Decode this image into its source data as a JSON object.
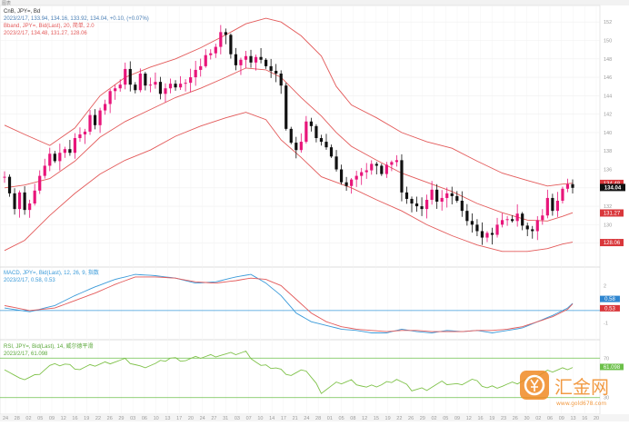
{
  "topbar": {
    "left_label": "图表",
    "right_label": ""
  },
  "main": {
    "symbol_line": "CnB, JPY=, Bd",
    "quote_line": "2023/2/17, 133.94, 134.16, 133.92, 134.04, +0.10, (+0.07%)",
    "bands_title": "Bband, JPY=, Bid(Last), 20, 简单, 2.0",
    "bands_values": "2023/2/17, 134.48, 131.27, 128.06",
    "price_tag_high": "134.48",
    "price_tag_last": "134.04",
    "price_tag_mid": "131.27",
    "price_tag_low": "128.06"
  },
  "macd": {
    "title": "MACD, JPY=, Bid(Last), 12, 26, 9, 指数",
    "values": "2023/2/17, 0.58, 0.53",
    "tag_macd": "0.58",
    "tag_signal": "0.53"
  },
  "rsi": {
    "title": "RSI, JPY=, Bid(Last), 14, 威尔德平滑",
    "values": "2023/2/17, 61.098",
    "tag": "61.098"
  },
  "watermark": {
    "brand": "汇金网",
    "url": "www.gold678.com"
  },
  "colors": {
    "up": "#e8157a",
    "down": "#111111",
    "band": "#e35a5a",
    "macd_line": "#3a9ad9",
    "signal_line": "#e35a5a",
    "rsi_line": "#7fc24a",
    "rsi_guide": "#6cc04a",
    "zero_line": "#3a9ad9",
    "watermark": "#f08a24"
  },
  "chart_data": [
    {
      "type": "candlestick",
      "title": "",
      "y_ticks": [
        128,
        130,
        132,
        134,
        136,
        138,
        140,
        142,
        144,
        146,
        148,
        150,
        152
      ],
      "ylim": [
        125.6,
        153.4
      ],
      "x_ticks": [
        "24",
        "28",
        "02",
        "05",
        "09",
        "12",
        "16",
        "19",
        "22",
        "26",
        "29",
        "03",
        "06",
        "10",
        "13",
        "17",
        "20",
        "24",
        "27",
        "31",
        "03",
        "07",
        "10",
        "14",
        "17",
        "21",
        "24",
        "28",
        "01",
        "05",
        "08",
        "12",
        "15",
        "19",
        "22",
        "26",
        "29",
        "02",
        "05",
        "09",
        "12",
        "16",
        "19",
        "23",
        "26",
        "30",
        "02",
        "06",
        "09",
        "13",
        "16",
        "20"
      ],
      "close_start": 135.2,
      "close_path": [
        135.2,
        133.4,
        131.7,
        133.5,
        131.6,
        132.3,
        133.7,
        135.3,
        136.4,
        137.7,
        136.9,
        137.8,
        138.2,
        137.8,
        139.4,
        139.8,
        140.1,
        141.9,
        140.8,
        142.4,
        143.1,
        144.5,
        144.8,
        145.2,
        146.9,
        145.2,
        144.6,
        146.4,
        145.1,
        145.2,
        145.5,
        144.2,
        144.8,
        145.3,
        144.9,
        145.3,
        145.4,
        146.0,
        146.8,
        147.2,
        148.4,
        148.6,
        149.3,
        150.9,
        150.6,
        148.5,
        147.3,
        147.9,
        148.3,
        147.6,
        148.2,
        147.9,
        147.2,
        146.7,
        146.4,
        145.1,
        140.4,
        138.9,
        138.1,
        139.0,
        141.2,
        140.7,
        139.4,
        139.0,
        138.4,
        137.4,
        136.0,
        134.6,
        134.2,
        134.9,
        135.3,
        135.7,
        135.9,
        136.6,
        136.4,
        135.5,
        136.5,
        136.8,
        137.0,
        133.5,
        132.8,
        132.3,
        132.0,
        131.7,
        132.7,
        133.8,
        132.5,
        132.9,
        133.4,
        133.1,
        132.6,
        131.5,
        130.4,
        130.0,
        129.3,
        128.6,
        129.1,
        128.9,
        130.0,
        130.5,
        130.6,
        130.4,
        131.2,
        129.9,
        129.5,
        129.3,
        130.5,
        131.0,
        132.9,
        131.5,
        132.6,
        133.9,
        134.4,
        134.0
      ],
      "bands": {
        "upper_pts": [
          [
            0,
            140.8
          ],
          [
            4,
            139.8
          ],
          [
            9,
            138.6
          ],
          [
            14,
            140.5
          ],
          [
            19,
            144.0
          ],
          [
            24,
            146.0
          ],
          [
            29,
            147.1
          ],
          [
            34,
            148.0
          ],
          [
            39,
            149.2
          ],
          [
            44,
            150.6
          ],
          [
            48,
            151.8
          ],
          [
            52,
            152.4
          ],
          [
            55,
            152.0
          ],
          [
            59,
            150.5
          ],
          [
            63,
            148.3
          ],
          [
            66,
            145.0
          ],
          [
            69,
            143.0
          ],
          [
            74,
            141.6
          ],
          [
            79,
            140.0
          ],
          [
            84,
            139.0
          ],
          [
            89,
            138.3
          ],
          [
            94,
            136.9
          ],
          [
            99,
            135.6
          ],
          [
            104,
            134.8
          ],
          [
            108,
            134.2
          ],
          [
            111,
            134.4
          ],
          [
            113,
            134.5
          ]
        ],
        "middle_pts": [
          [
            0,
            134.0
          ],
          [
            4,
            134.3
          ],
          [
            9,
            135.0
          ],
          [
            14,
            136.9
          ],
          [
            19,
            139.5
          ],
          [
            24,
            141.2
          ],
          [
            29,
            142.5
          ],
          [
            34,
            143.8
          ],
          [
            39,
            144.8
          ],
          [
            44,
            146.0
          ],
          [
            48,
            147.0
          ],
          [
            52,
            146.8
          ],
          [
            55,
            146.0
          ],
          [
            59,
            143.8
          ],
          [
            63,
            141.8
          ],
          [
            66,
            140.0
          ],
          [
            69,
            138.5
          ],
          [
            74,
            137.0
          ],
          [
            79,
            135.6
          ],
          [
            84,
            134.6
          ],
          [
            89,
            133.6
          ],
          [
            94,
            132.3
          ],
          [
            99,
            131.3
          ],
          [
            104,
            130.5
          ],
          [
            108,
            130.4
          ],
          [
            111,
            130.9
          ],
          [
            113,
            131.3
          ]
        ],
        "lower_pts": [
          [
            0,
            127.2
          ],
          [
            4,
            128.3
          ],
          [
            9,
            131.0
          ],
          [
            14,
            133.4
          ],
          [
            19,
            135.5
          ],
          [
            24,
            137.0
          ],
          [
            29,
            138.1
          ],
          [
            34,
            139.6
          ],
          [
            39,
            140.7
          ],
          [
            44,
            141.6
          ],
          [
            48,
            142.2
          ],
          [
            52,
            141.4
          ],
          [
            55,
            139.2
          ],
          [
            59,
            137.3
          ],
          [
            63,
            135.2
          ],
          [
            66,
            134.6
          ],
          [
            69,
            134.0
          ],
          [
            74,
            132.7
          ],
          [
            79,
            131.5
          ],
          [
            84,
            130.0
          ],
          [
            89,
            128.8
          ],
          [
            94,
            127.8
          ],
          [
            99,
            127.1
          ],
          [
            104,
            127.1
          ],
          [
            108,
            127.4
          ],
          [
            111,
            127.9
          ],
          [
            113,
            128.1
          ]
        ]
      }
    },
    {
      "type": "line",
      "title": "",
      "ylim": [
        -2.2,
        3.2
      ],
      "y_ticks": [
        2,
        1,
        -1
      ],
      "series": [
        {
          "name": "MACD",
          "points": [
            [
              0,
              0.2
            ],
            [
              5,
              -0.1
            ],
            [
              10,
              0.4
            ],
            [
              14,
              1.2
            ],
            [
              18,
              1.9
            ],
            [
              22,
              2.5
            ],
            [
              26,
              2.9
            ],
            [
              30,
              2.8
            ],
            [
              34,
              2.6
            ],
            [
              38,
              2.2
            ],
            [
              42,
              2.3
            ],
            [
              46,
              2.7
            ],
            [
              49,
              2.9
            ],
            [
              52,
              2.2
            ],
            [
              55,
              1.2
            ],
            [
              58,
              -0.2
            ],
            [
              61,
              -0.9
            ],
            [
              64,
              -1.2
            ],
            [
              67,
              -1.5
            ],
            [
              70,
              -1.6
            ],
            [
              73,
              -1.8
            ],
            [
              76,
              -1.8
            ],
            [
              79,
              -1.5
            ],
            [
              82,
              -1.7
            ],
            [
              85,
              -1.8
            ],
            [
              88,
              -1.6
            ],
            [
              91,
              -1.7
            ],
            [
              94,
              -1.6
            ],
            [
              97,
              -1.8
            ],
            [
              100,
              -1.6
            ],
            [
              103,
              -1.4
            ],
            [
              106,
              -0.9
            ],
            [
              109,
              -0.4
            ],
            [
              112,
              0.2
            ],
            [
              113,
              0.58
            ]
          ]
        },
        {
          "name": "Signal",
          "points": [
            [
              0,
              0.4
            ],
            [
              5,
              0.0
            ],
            [
              10,
              0.2
            ],
            [
              14,
              0.8
            ],
            [
              18,
              1.4
            ],
            [
              22,
              2.1
            ],
            [
              26,
              2.7
            ],
            [
              30,
              2.7
            ],
            [
              34,
              2.6
            ],
            [
              38,
              2.3
            ],
            [
              42,
              2.2
            ],
            [
              46,
              2.4
            ],
            [
              49,
              2.6
            ],
            [
              52,
              2.5
            ],
            [
              55,
              2.0
            ],
            [
              58,
              0.9
            ],
            [
              61,
              -0.2
            ],
            [
              64,
              -0.9
            ],
            [
              67,
              -1.3
            ],
            [
              70,
              -1.5
            ],
            [
              73,
              -1.6
            ],
            [
              76,
              -1.7
            ],
            [
              79,
              -1.6
            ],
            [
              82,
              -1.6
            ],
            [
              85,
              -1.7
            ],
            [
              88,
              -1.7
            ],
            [
              91,
              -1.7
            ],
            [
              94,
              -1.6
            ],
            [
              97,
              -1.6
            ],
            [
              100,
              -1.5
            ],
            [
              103,
              -1.3
            ],
            [
              106,
              -0.9
            ],
            [
              109,
              -0.5
            ],
            [
              112,
              0.1
            ],
            [
              113,
              0.53
            ]
          ]
        }
      ]
    },
    {
      "type": "line",
      "title": "",
      "ylim": [
        15,
        85
      ],
      "guides": [
        70,
        30
      ],
      "series": [
        {
          "name": "RSI",
          "points": [
            [
              0,
              60
            ],
            [
              3,
              48
            ],
            [
              6,
              52
            ],
            [
              9,
              62
            ],
            [
              12,
              64
            ],
            [
              15,
              59
            ],
            [
              18,
              63
            ],
            [
              21,
              66
            ],
            [
              24,
              68
            ],
            [
              27,
              61
            ],
            [
              30,
              64
            ],
            [
              33,
              70
            ],
            [
              36,
              68
            ],
            [
              39,
              71
            ],
            [
              42,
              73
            ],
            [
              45,
              74
            ],
            [
              48,
              76
            ],
            [
              51,
              62
            ],
            [
              54,
              60
            ],
            [
              57,
              53
            ],
            [
              60,
              58
            ],
            [
              63,
              36
            ],
            [
              66,
              44
            ],
            [
              69,
              47
            ],
            [
              72,
              40
            ],
            [
              75,
              43
            ],
            [
              78,
              49
            ],
            [
              81,
              38
            ],
            [
              84,
              39
            ],
            [
              87,
              45
            ],
            [
              90,
              43
            ],
            [
              93,
              48
            ],
            [
              96,
              40
            ],
            [
              99,
              42
            ],
            [
              102,
              45
            ],
            [
              105,
              50
            ],
            [
              108,
              56
            ],
            [
              111,
              59
            ],
            [
              113,
              61.098
            ]
          ]
        }
      ]
    }
  ]
}
